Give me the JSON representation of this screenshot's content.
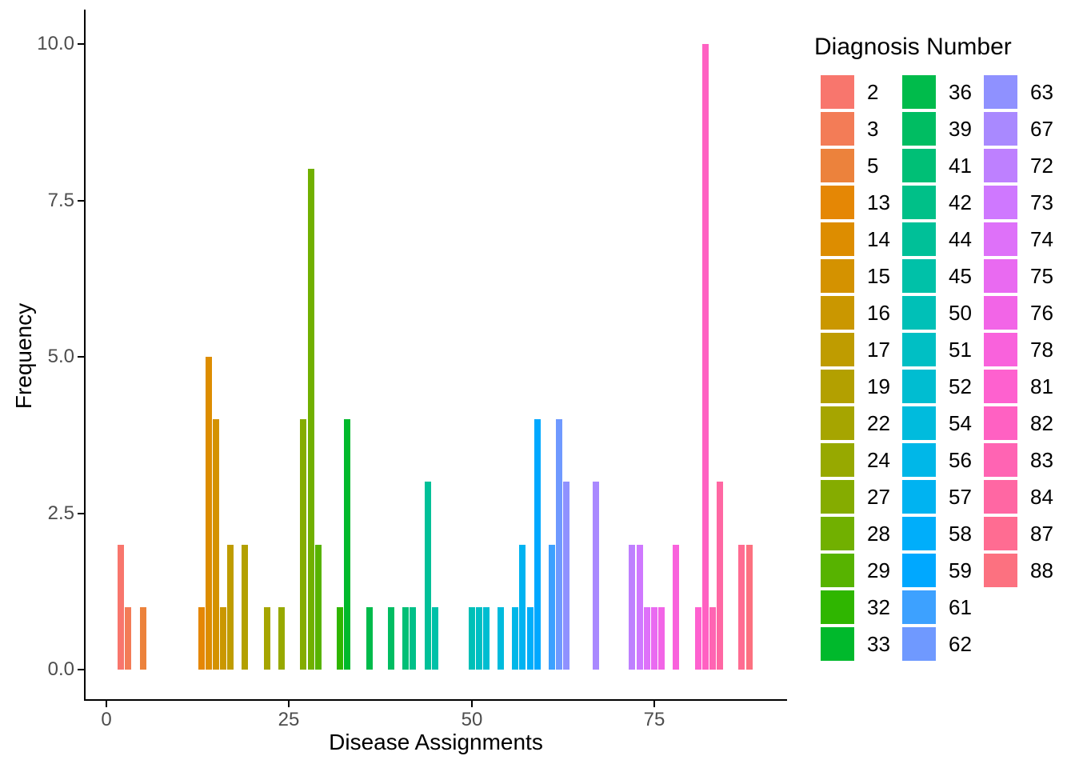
{
  "chart_data": {
    "type": "bar",
    "title": "",
    "xlabel": "Disease Assignments",
    "ylabel": "Frequency",
    "legend_title": "Diagnosis Number",
    "legend_position": "right",
    "legend_columns": [
      16,
      16,
      14
    ],
    "grid": false,
    "x_tick_labels": [
      "0",
      "25",
      "50",
      "75"
    ],
    "x_tick_values": [
      0,
      25,
      50,
      75
    ],
    "y_tick_labels": [
      "0.0",
      "2.5",
      "5.0",
      "7.5",
      "10.0"
    ],
    "y_tick_values": [
      0,
      2.5,
      5,
      7.5,
      10
    ],
    "xlim": [
      -2.9,
      93.1
    ],
    "ylim": [
      -0.47,
      10.97
    ],
    "bar_width": 0.9,
    "total_assignments": 100,
    "palette": {
      "model": "hcl-hue-wheel",
      "hue_start": 15,
      "hue_end": 375,
      "chroma": 100,
      "luminance": 65
    },
    "bars": [
      {
        "diagnosis": 2,
        "frequency": 2
      },
      {
        "diagnosis": 3,
        "frequency": 1
      },
      {
        "diagnosis": 5,
        "frequency": 1
      },
      {
        "diagnosis": 13,
        "frequency": 1
      },
      {
        "diagnosis": 14,
        "frequency": 5
      },
      {
        "diagnosis": 15,
        "frequency": 4
      },
      {
        "diagnosis": 16,
        "frequency": 1
      },
      {
        "diagnosis": 17,
        "frequency": 2
      },
      {
        "diagnosis": 19,
        "frequency": 2
      },
      {
        "diagnosis": 22,
        "frequency": 1
      },
      {
        "diagnosis": 24,
        "frequency": 1
      },
      {
        "diagnosis": 27,
        "frequency": 4
      },
      {
        "diagnosis": 28,
        "frequency": 8
      },
      {
        "diagnosis": 29,
        "frequency": 2
      },
      {
        "diagnosis": 32,
        "frequency": 1
      },
      {
        "diagnosis": 33,
        "frequency": 4
      },
      {
        "diagnosis": 36,
        "frequency": 1
      },
      {
        "diagnosis": 39,
        "frequency": 1
      },
      {
        "diagnosis": 41,
        "frequency": 1
      },
      {
        "diagnosis": 42,
        "frequency": 1
      },
      {
        "diagnosis": 44,
        "frequency": 3
      },
      {
        "diagnosis": 45,
        "frequency": 1
      },
      {
        "diagnosis": 50,
        "frequency": 1
      },
      {
        "diagnosis": 51,
        "frequency": 1
      },
      {
        "diagnosis": 52,
        "frequency": 1
      },
      {
        "diagnosis": 54,
        "frequency": 1
      },
      {
        "diagnosis": 56,
        "frequency": 1
      },
      {
        "diagnosis": 57,
        "frequency": 2
      },
      {
        "diagnosis": 58,
        "frequency": 1
      },
      {
        "diagnosis": 59,
        "frequency": 4
      },
      {
        "diagnosis": 61,
        "frequency": 2
      },
      {
        "diagnosis": 62,
        "frequency": 4
      },
      {
        "diagnosis": 63,
        "frequency": 3
      },
      {
        "diagnosis": 67,
        "frequency": 3
      },
      {
        "diagnosis": 72,
        "frequency": 2
      },
      {
        "diagnosis": 73,
        "frequency": 2
      },
      {
        "diagnosis": 74,
        "frequency": 1
      },
      {
        "diagnosis": 75,
        "frequency": 1
      },
      {
        "diagnosis": 76,
        "frequency": 1
      },
      {
        "diagnosis": 78,
        "frequency": 2
      },
      {
        "diagnosis": 81,
        "frequency": 1
      },
      {
        "diagnosis": 82,
        "frequency": 10
      },
      {
        "diagnosis": 83,
        "frequency": 1
      },
      {
        "diagnosis": 84,
        "frequency": 3
      },
      {
        "diagnosis": 87,
        "frequency": 2
      },
      {
        "diagnosis": 88,
        "frequency": 2
      }
    ]
  },
  "colors": {
    "background": "#ffffff",
    "axis_line": "#000000",
    "tick_mark": "#000000",
    "tick_label": "#4d4d4d",
    "axis_title": "#000000",
    "legend_text": "#000000"
  }
}
